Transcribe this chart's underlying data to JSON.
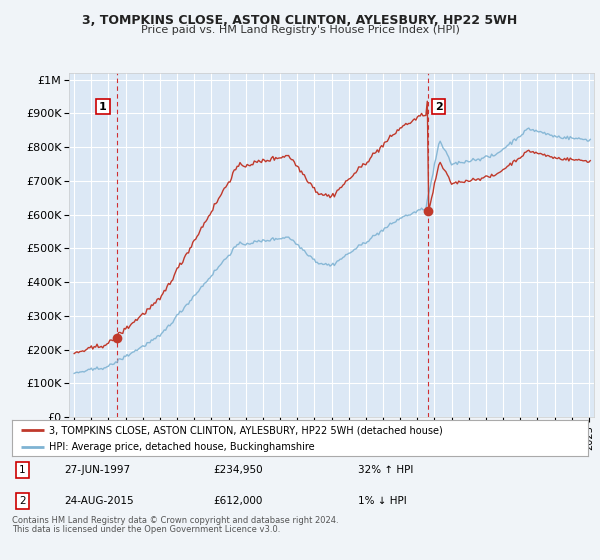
{
  "title": "3, TOMPKINS CLOSE, ASTON CLINTON, AYLESBURY, HP22 5WH",
  "subtitle": "Price paid vs. HM Land Registry's House Price Index (HPI)",
  "legend_line1": "3, TOMPKINS CLOSE, ASTON CLINTON, AYLESBURY, HP22 5WH (detached house)",
  "legend_line2": "HPI: Average price, detached house, Buckinghamshire",
  "annotation1_label": "1",
  "annotation1_date": "27-JUN-1997",
  "annotation1_price": "£234,950",
  "annotation1_hpi": "32% ↑ HPI",
  "annotation2_label": "2",
  "annotation2_date": "24-AUG-2015",
  "annotation2_price": "£612,000",
  "annotation2_hpi": "1% ↓ HPI",
  "footer1": "Contains HM Land Registry data © Crown copyright and database right 2024.",
  "footer2": "This data is licensed under the Open Government Licence v3.0.",
  "sale1_year": 1997.48,
  "sale1_price": 234950,
  "sale2_year": 2015.64,
  "sale2_price": 612000,
  "hpi_color": "#7fb3d3",
  "sale_line_color": "#c0392b",
  "sale_dot_color": "#c0392b",
  "vline_color": "#cc0000",
  "background_color": "#f0f4f8",
  "plot_bg_color": "#dce8f5",
  "grid_color": "#ffffff",
  "ylim_min": 0,
  "ylim_max": 1000000,
  "xlim_min": 1994.7,
  "xlim_max": 2025.3
}
